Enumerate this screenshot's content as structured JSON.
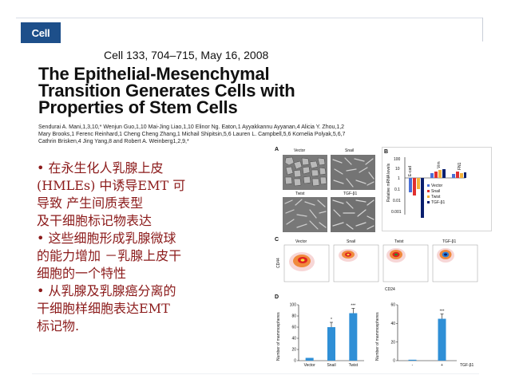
{
  "header": {
    "logo_text": "Cell",
    "citation": "Cell 133, 704–715, May 16, 2008"
  },
  "paper": {
    "title_lines": [
      "The Epithelial-Mesenchymal",
      "Transition Generates Cells with",
      "Properties of Stem Cells"
    ],
    "author_lines": [
      "Sendurai A. Mani,1,3,10,* Wenjun Guo,1,10 Mai-Jing Liao,1,10 Elinor Ng. Eaton,1 Ayyakkannu Ayyanan,4 Alicia Y. Zhou,1,2",
      "Mary Brooks,1 Ferenc Reinhard,1 Cheng Cheng Zhang,1 Michail Shipitsin,5,6 Lauren L. Campbell,5,6 Kornelia Polyak,5,6,7",
      "Cathrin Brisken,4 Jing Yang,8 and Robert A. Weinberg1,2,9,*"
    ]
  },
  "bullets": [
    "• 在永生化人乳腺上皮",
    "(HMLEs) 中诱导EMT 可",
    "导致 产生间质表型",
    "   及干细胞标记物表达",
    "• 这些细胞形成乳腺微球",
    "的能力增加 －乳腺上皮干",
    "细胞的一个特性",
    "• 从乳腺及乳腺癌分离的",
    "干细胞样细胞表达EMT",
    "标记物."
  ],
  "figure": {
    "panel_a": {
      "letter": "A",
      "labels": [
        "Vector",
        "Snail",
        "Twist",
        "TGF-β1"
      ]
    },
    "panel_b": {
      "letter": "B",
      "ylabel": "Relative mRNA levels",
      "yticks": [
        "100",
        "10",
        "1",
        "0.1",
        "0.01",
        "0.001"
      ],
      "groups": [
        "E-cad",
        "Vim",
        "FN1"
      ],
      "legend": [
        "Vector",
        "Snail",
        "Twist",
        "TGF-β1"
      ],
      "colors": [
        "#4a6fd6",
        "#e03030",
        "#f4b23a",
        "#0a1f6e"
      ]
    },
    "panel_c": {
      "letter": "C",
      "labels": [
        "Vector",
        "Snail",
        "Twist",
        "TGF-β1"
      ],
      "ylabel": "CD44",
      "xlabel": "CD24"
    },
    "panel_d": {
      "letter": "D",
      "ylabel": "Number of mammospheres",
      "categories": [
        "Vector",
        "Snail",
        "Twist"
      ],
      "values": [
        5,
        60,
        85
      ],
      "ylim": [
        0,
        100
      ],
      "yticks": [
        "0",
        "20",
        "40",
        "60",
        "80",
        "100"
      ],
      "sig": [
        "",
        "*",
        "***"
      ],
      "color": "#2f8fd6"
    },
    "panel_e": {
      "ylabel": "Number of mammospheres",
      "categories": [
        "-",
        "+"
      ],
      "xlabel": "TGF-β1",
      "values": [
        1,
        45
      ],
      "ylim": [
        0,
        60
      ],
      "yticks": [
        "0",
        "20",
        "40",
        "60"
      ],
      "sig": [
        "",
        "***"
      ],
      "color": "#2f8fd6"
    }
  }
}
